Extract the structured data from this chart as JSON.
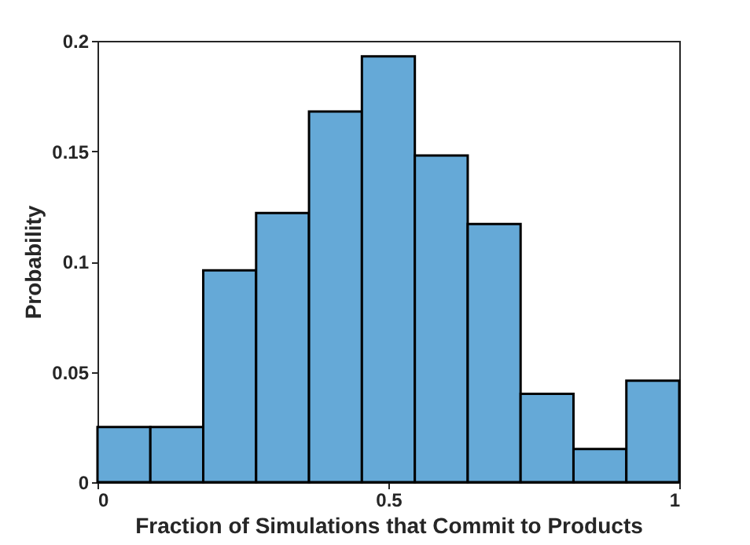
{
  "chart_data": {
    "type": "histogram",
    "xlabel": "Fraction of Simulations that Commit to Products",
    "ylabel": "Probability",
    "bins": [
      0,
      0.0909,
      0.1818,
      0.2727,
      0.3636,
      0.4545,
      0.5455,
      0.6364,
      0.7273,
      0.8182,
      0.9091,
      1
    ],
    "values": [
      0.025,
      0.025,
      0.096,
      0.122,
      0.168,
      0.193,
      0.148,
      0.117,
      0.04,
      0.015,
      0.046
    ],
    "color": "#65a9d7",
    "xlim": [
      0,
      1
    ],
    "xticks": [
      0,
      0.5,
      1
    ],
    "ylim": [
      0,
      0.2
    ],
    "yticks": [
      0,
      0.05,
      0.1,
      0.15,
      0.2
    ],
    "grid": false
  }
}
